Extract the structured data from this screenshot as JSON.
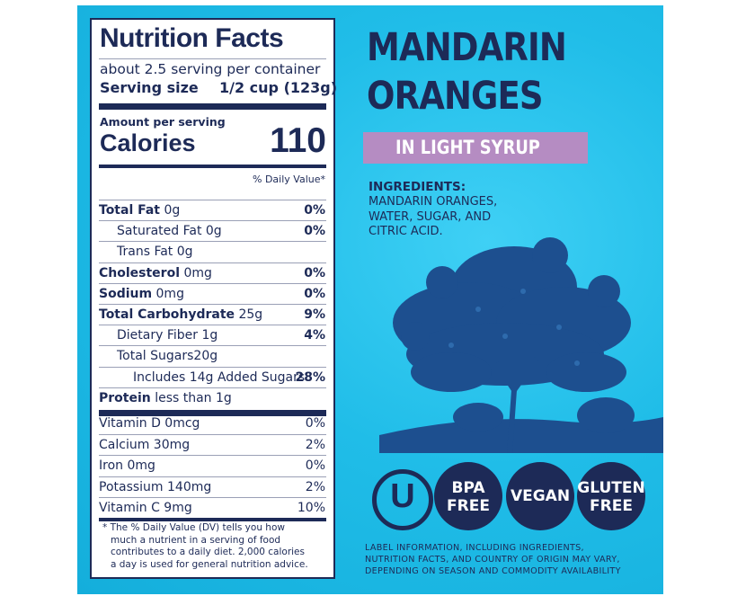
{
  "nutrition": {
    "title": "Nutrition Facts",
    "servings": "about 2.5 serving per container",
    "serving_size_label": "Serving size",
    "serving_size_value": "1/2 cup (123g)",
    "amount_per_serving": "Amount per serving",
    "calories_label": "Calories",
    "calories_value": "110",
    "dv_header": "% Daily Value*",
    "rows": [
      {
        "bold": "Total Fat",
        "rest": " 0g",
        "pct": "0%",
        "pct_bold": true
      },
      {
        "bold": "",
        "rest": "Saturated Fat 0g",
        "pct": "0%",
        "pct_bold": true
      },
      {
        "bold": "",
        "rest": "Trans Fat 0g",
        "pct": "",
        "pct_bold": false
      },
      {
        "bold": "Cholesterol",
        "rest": " 0mg",
        "pct": "0%",
        "pct_bold": true
      },
      {
        "bold": "Sodium",
        "rest": " 0mg",
        "pct": "0%",
        "pct_bold": true
      },
      {
        "bold": "Total Carbohydrate",
        "rest": " 25g",
        "pct": "9%",
        "pct_bold": true
      },
      {
        "bold": "",
        "rest": "Dietary Fiber 1g",
        "pct": "4%",
        "pct_bold": true
      },
      {
        "bold": "",
        "rest": "Total Sugars20g",
        "pct": "",
        "pct_bold": false
      },
      {
        "bold": "",
        "rest": "Includes 14g Added Sugars",
        "pct": "28%",
        "pct_bold": true
      },
      {
        "bold": "Protein",
        "rest": " less than 1g",
        "pct": "",
        "pct_bold": false
      }
    ],
    "vitamins": [
      {
        "label": "Vitamin D 0mcg",
        "pct": "0%"
      },
      {
        "label": "Calcium 30mg",
        "pct": "2%"
      },
      {
        "label": "Iron 0mg",
        "pct": "0%"
      },
      {
        "label": "Potassium 140mg",
        "pct": "2%"
      },
      {
        "label": "Vitamin C 9mg",
        "pct": "10%"
      }
    ],
    "footnote": [
      "* The % Daily Value (DV) tells you how",
      "much a nutrient in a serving of food",
      "contributes to a daily diet. 2,000  calories",
      "a day is used for general nutrition advice."
    ]
  },
  "product": {
    "title_line1": "MANDARIN",
    "title_line2": "ORANGES",
    "subtitle": "IN LIGHT SYRUP",
    "ingredients_heading": "INGREDIENTS:",
    "ingredients_lines": [
      "MANDARIN ORANGES,",
      "WATER, SUGAR, AND",
      "CITRIC ACID."
    ],
    "badges": {
      "kosher": "U",
      "bpa_free": [
        "BPA",
        "FREE"
      ],
      "vegan": [
        "VEGAN"
      ],
      "gluten_free": [
        "GLUTEN",
        "FREE"
      ]
    },
    "disclaimer": [
      "LABEL INFORMATION, INCLUDING INGREDIENTS,",
      "NUTRITION FACTS, AND COUNTRY OF ORIGIN MAY VARY,",
      "DEPENDING ON SEASON AND COMMODITY AVAILABILITY"
    ]
  },
  "colors": {
    "navy": "#1d2a57",
    "background": "#1bb7e4",
    "syrup_banner": "#b58cc2"
  }
}
